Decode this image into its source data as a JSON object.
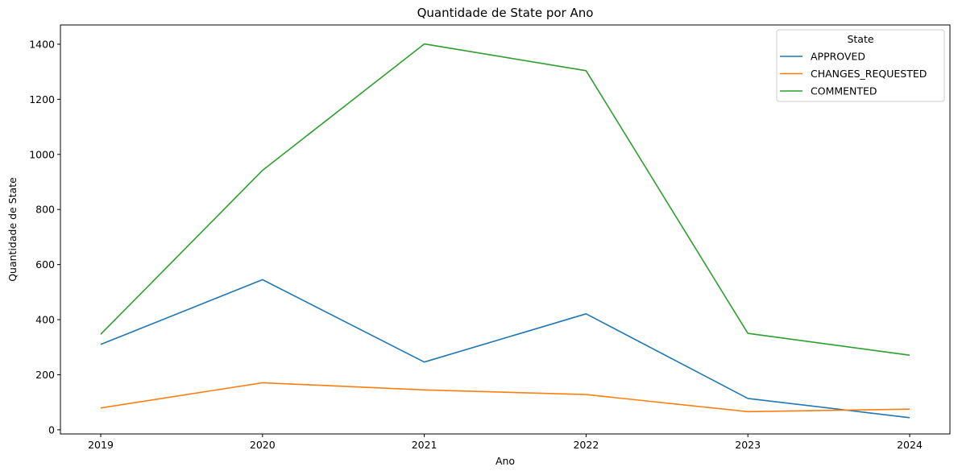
{
  "chart_data": {
    "type": "line",
    "title": "Quantidade de State por Ano",
    "xlabel": "Ano",
    "ylabel": "Quantidade de State",
    "x": [
      2019,
      2020,
      2021,
      2022,
      2023,
      2024
    ],
    "ylim": [
      -15,
      1470
    ],
    "yticks": [
      0,
      200,
      400,
      600,
      800,
      1000,
      1200,
      1400
    ],
    "grid": false,
    "legend": {
      "title": "State",
      "placement": "top-right"
    },
    "series": [
      {
        "name": "APPROVED",
        "color": "#1f77b4",
        "values": [
          310,
          545,
          246,
          421,
          114,
          44
        ]
      },
      {
        "name": "CHANGES_REQUESTED",
        "color": "#ff7f0e",
        "values": [
          79,
          171,
          145,
          128,
          66,
          75
        ]
      },
      {
        "name": "COMMENTED",
        "color": "#2ca02c",
        "values": [
          347,
          942,
          1401,
          1304,
          350,
          271
        ]
      }
    ]
  }
}
